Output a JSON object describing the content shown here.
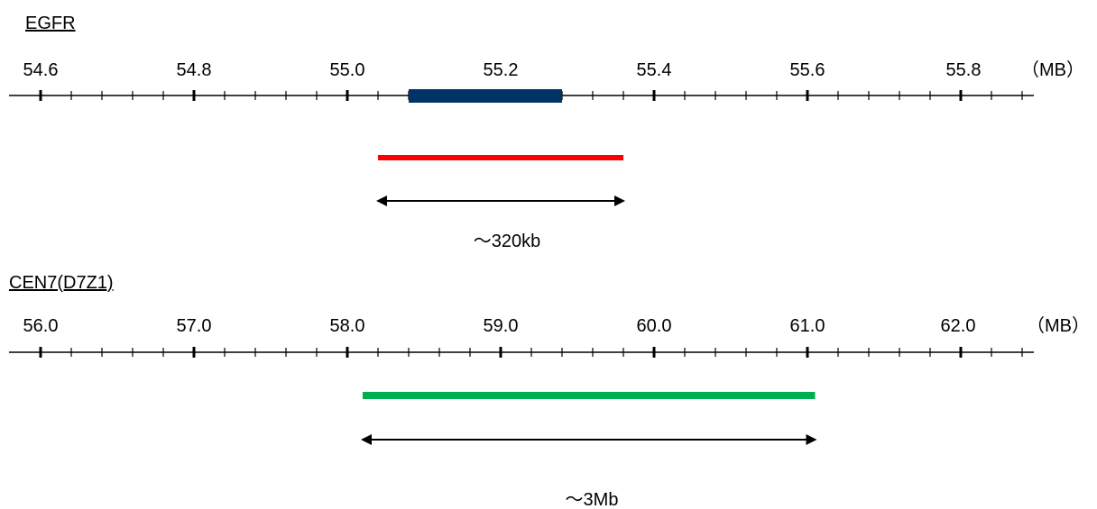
{
  "egfr": {
    "title": "EGFR",
    "unit": "（MB）",
    "tick_labels": [
      "54.6",
      "54.8",
      "55.0",
      "55.2",
      "55.4",
      "55.6",
      "55.8"
    ],
    "axis_range": [
      54.56,
      55.9
    ],
    "gene_region": {
      "start": 55.08,
      "end": 55.28,
      "color": "#003366"
    },
    "probe": {
      "start": 55.04,
      "end": 55.36,
      "color": "#ff0000"
    },
    "measure": {
      "start": 55.04,
      "end": 55.36,
      "label": "～320kb"
    }
  },
  "cen7": {
    "title": "CEN7(D7Z1)",
    "unit": "（MB）",
    "tick_labels": [
      "56.0",
      "57.0",
      "58.0",
      "59.0",
      "60.0",
      "61.0",
      "62.0"
    ],
    "axis_range": [
      55.8,
      62.5
    ],
    "probe": {
      "start": 58.1,
      "end": 61.05,
      "color": "#00b050"
    },
    "measure": {
      "start": 58.1,
      "end": 61.05,
      "label": "～3Mb"
    }
  }
}
